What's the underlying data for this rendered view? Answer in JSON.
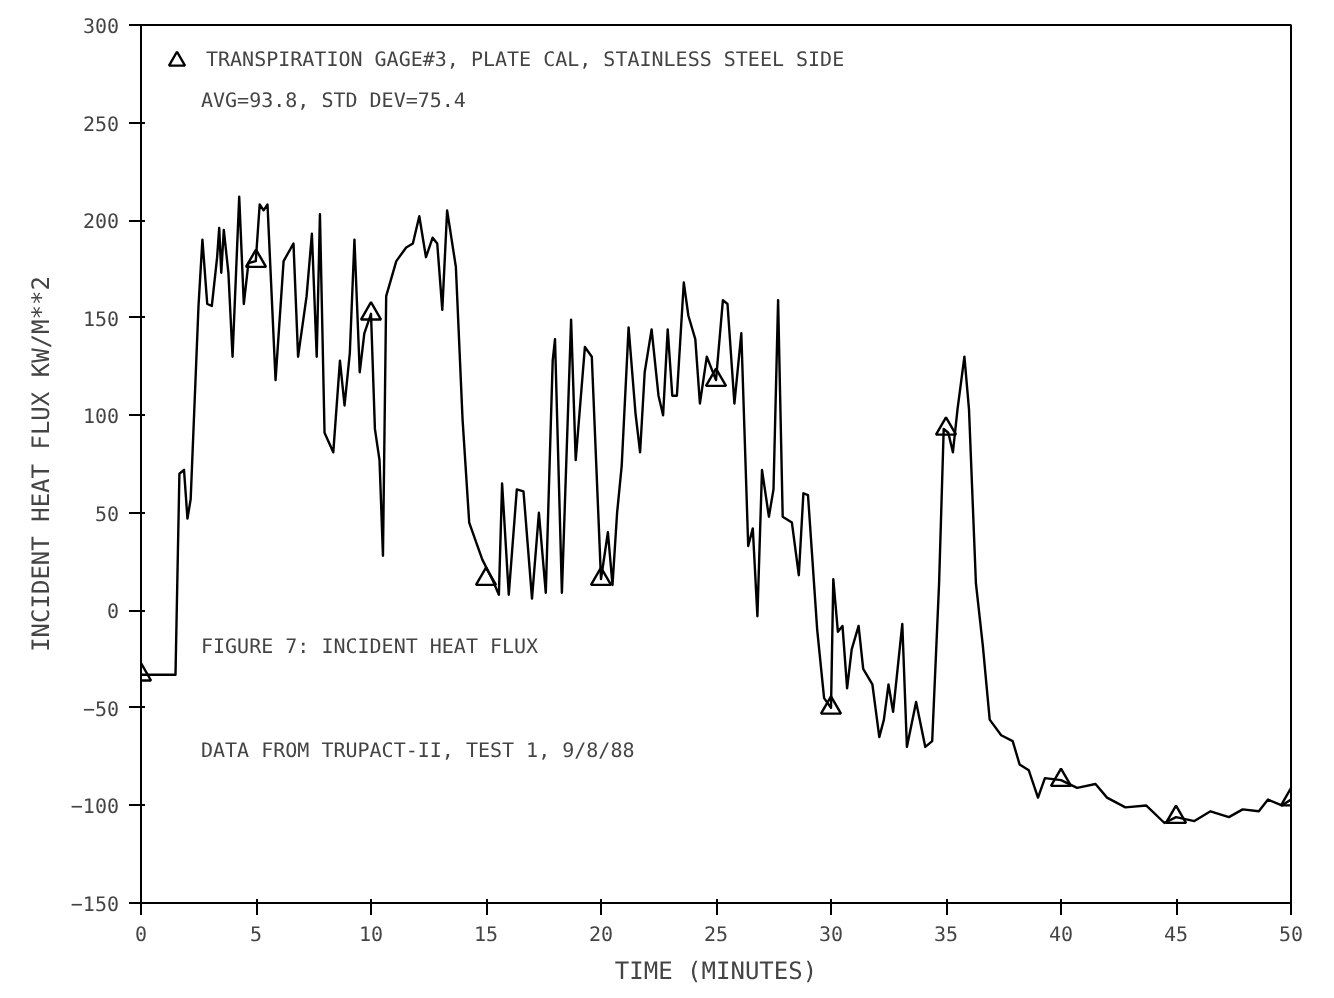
{
  "chart_data": {
    "type": "line",
    "xlabel": "TIME (MINUTES)",
    "ylabel": "INCIDENT HEAT FLUX KW/M**2",
    "xlim": [
      0,
      50
    ],
    "ylim": [
      -150,
      300
    ],
    "xticks": [
      0,
      5,
      10,
      15,
      20,
      25,
      30,
      35,
      40,
      45,
      50
    ],
    "yticks": [
      -150,
      -100,
      -50,
      0,
      50,
      100,
      150,
      200,
      250,
      300
    ],
    "grid": false,
    "legend": "top left",
    "line_style": "solid",
    "annotations": [
      "AVG=93.8, STD DEV=75.4",
      "FIGURE 7: INCIDENT HEAT FLUX",
      "DATA FROM TRUPACT-II, TEST 1, 9/8/88"
    ],
    "series": [
      {
        "color": "#000000",
        "marker": "none",
        "x": [
          0,
          1.5,
          1.67,
          1.87,
          2.02,
          2.16,
          2.5,
          2.67,
          2.88,
          3.08,
          3.31,
          3.4,
          3.49,
          3.6,
          3.8,
          3.98,
          4.27,
          4.47,
          4.67,
          4.99,
          5.16,
          5.33,
          5.5,
          5.85,
          6.2,
          6.63,
          6.83,
          7.2,
          7.43,
          7.64,
          7.78,
          7.98,
          8.36,
          8.65,
          8.85,
          9.08,
          9.28,
          9.51,
          9.71,
          10.0,
          10.17,
          10.37,
          10.52,
          10.66,
          11.1,
          11.53,
          11.82,
          12.1,
          12.39,
          12.68,
          12.88,
          13.1,
          13.31,
          13.69,
          13.98,
          14.27,
          14.84,
          15.27,
          15.56,
          15.7,
          15.99,
          16.34,
          16.63,
          17.0,
          17.3,
          17.6,
          17.9,
          18.0,
          18.3,
          18.7,
          18.9,
          19.3,
          19.6,
          20.0,
          20.3,
          20.5,
          20.7,
          20.9,
          21.2,
          21.5,
          21.7,
          21.9,
          22.2,
          22.5,
          22.7,
          22.9,
          23.1,
          23.3,
          23.6,
          23.8,
          24.1,
          24.3,
          24.6,
          25.0,
          25.3,
          25.5,
          25.8,
          26.1,
          26.4,
          26.6,
          26.8,
          27.0,
          27.3,
          27.5,
          27.7,
          27.9,
          28.3,
          28.6,
          28.8,
          29.0,
          29.4,
          29.7,
          30.0,
          30.1,
          30.3,
          30.5,
          30.7,
          30.9,
          31.2,
          31.4,
          31.8,
          32.1,
          32.3,
          32.5,
          32.7,
          33.1,
          33.3,
          33.7,
          34.1,
          34.4,
          34.7,
          34.9,
          35.1,
          35.3,
          35.5,
          35.8,
          36.0,
          36.3,
          36.6,
          36.9,
          37.4,
          37.9,
          38.2,
          38.6,
          39.0,
          39.3,
          40.0,
          40.7,
          41.5,
          42.0,
          42.8,
          43.7,
          44.5,
          45.0,
          45.8,
          46.5,
          47.3,
          47.9,
          48.6,
          49.0,
          49.6,
          50.0
        ],
        "values": [
          -33,
          -33,
          70,
          72,
          47,
          57,
          156,
          190,
          157,
          156,
          181,
          196,
          173,
          195,
          173,
          130,
          212,
          157,
          178,
          179,
          208,
          205,
          208,
          118,
          179,
          188,
          130,
          161,
          193,
          130,
          203,
          91,
          81,
          128,
          105,
          132,
          190,
          122,
          142,
          152,
          93,
          77,
          28,
          161,
          179,
          186,
          188,
          202,
          181,
          191,
          188,
          154,
          205,
          176,
          98,
          45,
          26,
          16,
          8,
          65,
          8,
          62,
          61,
          6,
          50,
          9,
          128,
          139,
          9,
          149,
          77,
          135,
          130,
          16,
          40,
          13,
          50,
          74,
          145,
          101,
          81,
          122,
          144,
          110,
          100,
          144,
          110,
          110,
          168,
          151,
          139,
          106,
          130,
          118,
          159,
          157,
          106,
          142,
          33,
          42,
          -3,
          72,
          48,
          62,
          159,
          48,
          45,
          18,
          60,
          59,
          -10,
          -45,
          -50,
          16,
          -11,
          -8,
          -40,
          -20,
          -8,
          -30,
          -38,
          -65,
          -56,
          -38,
          -52,
          -7,
          -70,
          -47,
          -70,
          -67,
          14,
          93,
          91,
          81,
          103,
          130,
          103,
          14,
          -18,
          -56,
          -64,
          -67,
          -79,
          -82,
          -96,
          -86,
          -87,
          -91,
          -89,
          -96,
          -101,
          -100,
          -109,
          -106,
          -108,
          -103,
          -106,
          -102,
          -103,
          -97,
          -100,
          -97
        ]
      },
      {
        "type": "scatter",
        "name": "TRANSPIRATION GAGE#3, PLATE CAL, STAINLESS STEEL SIDE",
        "color": "#000000",
        "marker": "triangle",
        "x": [
          0,
          5,
          10,
          15,
          20,
          25,
          30,
          35,
          40,
          45,
          50
        ],
        "values": [
          -33,
          179,
          152,
          16,
          16,
          118,
          -50,
          93,
          -87,
          -106,
          -97
        ]
      }
    ]
  }
}
